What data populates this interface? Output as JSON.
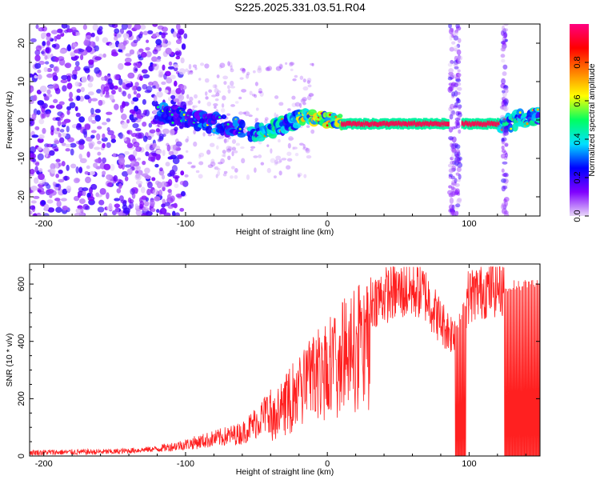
{
  "title": "S225.2025.331.03.51.R04",
  "chart_data": [
    {
      "type": "heatmap",
      "name": "spectrogram",
      "xlabel": "Height of straight line (km)",
      "ylabel": "Frequency (Hz)",
      "xlim": [
        -210,
        150
      ],
      "ylim": [
        -25,
        25
      ],
      "x_ticks": [
        -200,
        -100,
        0,
        100
      ],
      "y_ticks": [
        -20,
        -10,
        0,
        10,
        20
      ],
      "colorbar": {
        "label": "Normalized spectral amplitude",
        "range": [
          0,
          1
        ],
        "ticks": [
          "0.0",
          "0.2",
          "0.4",
          "0.6",
          "0.8"
        ],
        "tick_values": [
          0.0,
          0.2,
          0.4,
          0.6,
          0.8
        ],
        "colors": [
          "#e8d8f8",
          "#8000ff",
          "#0000ff",
          "#00e0ff",
          "#00ff60",
          "#ffff00",
          "#ff8000",
          "#ff0000",
          "#ff0080"
        ]
      },
      "carrier_segments": [
        {
          "x": [
            -120,
            -60
          ],
          "freq": [
            2,
            -2
          ],
          "amplitude": 0.25,
          "note": "scattered onset"
        },
        {
          "x": [
            -55,
            -20
          ],
          "freq": [
            -4,
            0
          ],
          "amplitude": 0.35
        },
        {
          "x": [
            -20,
            10
          ],
          "freq": [
            1,
            -0.5
          ],
          "amplitude": 0.5
        },
        {
          "x": [
            10,
            85
          ],
          "freq": [
            -1,
            -1
          ],
          "amplitude": 0.95
        },
        {
          "x": [
            95,
            122
          ],
          "freq": [
            -1,
            -1
          ],
          "amplitude": 0.95
        },
        {
          "x": [
            122,
            150
          ],
          "freq": [
            -1,
            1
          ],
          "amplitude": 0.35
        }
      ],
      "vertical_streaks_x": [
        88,
        92,
        125
      ]
    },
    {
      "type": "line",
      "name": "snr",
      "xlabel": "Height of straight line (km)",
      "ylabel": "SNR (10 * v/v)",
      "xlim": [
        -210,
        150
      ],
      "ylim": [
        0,
        670
      ],
      "x_ticks": [
        -200,
        -100,
        0,
        100
      ],
      "y_ticks": [
        0,
        200,
        400,
        600
      ],
      "color": "#ff2020",
      "series": [
        {
          "name": "SNR",
          "envelope_x": [
            -210,
            -150,
            -120,
            -100,
            -80,
            -60,
            -45,
            -35,
            -25,
            -15,
            -5,
            5,
            15,
            25,
            35,
            45,
            55,
            65,
            70,
            75,
            80,
            85,
            88,
            92,
            96,
            100,
            110,
            120,
            130,
            140,
            150
          ],
          "envelope_y": [
            12,
            15,
            25,
            40,
            60,
            80,
            140,
            200,
            270,
            330,
            390,
            430,
            480,
            520,
            550,
            570,
            575,
            580,
            560,
            510,
            470,
            440,
            430,
            460,
            520,
            560,
            580,
            590,
            595,
            600,
            600
          ],
          "dropout_ranges": [
            [
              90,
              98
            ],
            [
              125,
              150
            ]
          ]
        }
      ]
    }
  ]
}
